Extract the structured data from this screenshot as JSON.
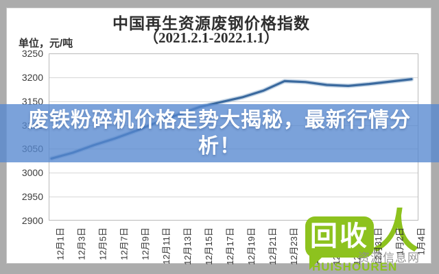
{
  "header": {
    "title_line1": "中国再生资源废钢价格指数",
    "title_line2": "（2021.2.1-2022.1.1）",
    "unit_label": "单位，元/吨"
  },
  "banner": {
    "text_line1": "废铁粉碎机价格走势大揭秘，最新行情分",
    "text_line2": "析！",
    "bg_color": "rgba(86,136,208,0.78)",
    "text_color": "#ffffff"
  },
  "logo": {
    "bubble_text": "回收",
    "person_glyph": "人",
    "romanized": "HUISHOUREN",
    "color": "#8dc21e"
  },
  "site_watermark": {
    "text": "资源信息网",
    "color": "#8e8e8e"
  },
  "chart_data": {
    "type": "line",
    "title": "中国再生资源废钢价格指数（2021.2.1-2022.1.1）",
    "ylabel": "元/吨",
    "ylim": [
      2900,
      3250
    ],
    "yticks": [
      2900,
      2950,
      3000,
      3050,
      3100,
      3150,
      3200,
      3250
    ],
    "grid": true,
    "legend": "none",
    "line_color": "#3a699e",
    "line_halo_color": "#8fb0cf",
    "grid_color": "#d6d6d6",
    "border_color": "#b9b9b9",
    "categories": [
      "12月1日",
      "12月3日",
      "12月5日",
      "12月7日",
      "12月9日",
      "12月11日",
      "12月13日",
      "12月15日",
      "12月17日",
      "12月19日",
      "12月21日",
      "12月23日",
      "12月25日",
      "12月27日",
      "12月29日",
      "12月31日",
      "1月2日",
      "1月4日"
    ],
    "values": [
      3030,
      3042,
      3058,
      3072,
      3088,
      3106,
      3122,
      3138,
      3148,
      3158,
      3172,
      3192,
      3190,
      3184,
      3182,
      3186,
      3191,
      3196
    ]
  }
}
